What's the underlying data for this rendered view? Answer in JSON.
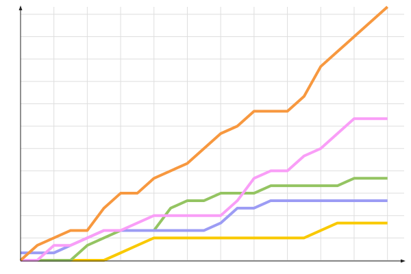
{
  "chart_data": {
    "type": "line",
    "x": [
      0,
      1,
      2,
      3,
      4,
      5,
      6,
      7,
      8,
      9,
      10,
      11,
      12,
      13,
      14,
      15,
      16,
      17,
      18,
      19,
      20,
      21,
      22
    ],
    "xlim": [
      0,
      23
    ],
    "ylim": [
      0,
      34
    ],
    "xticks": [
      0,
      2,
      4,
      6,
      8,
      10,
      12,
      14,
      16,
      18,
      20,
      22
    ],
    "yticks": [
      0,
      3,
      6,
      9,
      12,
      15,
      18,
      21,
      24,
      27,
      30,
      33
    ],
    "grid": true,
    "series": [
      {
        "color": "#f9c900",
        "values": [
          0,
          0,
          0,
          0,
          0,
          0,
          1,
          2,
          3,
          3,
          3,
          3,
          3,
          3,
          3,
          3,
          3,
          3,
          4,
          5,
          5,
          5,
          5
        ]
      },
      {
        "color": "#94c462",
        "values": [
          0,
          0,
          0,
          0,
          2,
          3,
          4,
          4,
          4,
          7,
          8,
          8,
          9,
          9,
          9,
          10,
          10,
          10,
          10,
          10,
          11,
          11,
          11
        ]
      },
      {
        "color": "#9c9cf4",
        "values": [
          1,
          1,
          1,
          2,
          3,
          4,
          4,
          4,
          4,
          4,
          4,
          4,
          5,
          7,
          7,
          8,
          8,
          8,
          8,
          8,
          8,
          8,
          8
        ]
      },
      {
        "color": "#f99ef7",
        "values": [
          0,
          0,
          2,
          2,
          3,
          4,
          4,
          5,
          6,
          6,
          6,
          6,
          6,
          8,
          11,
          12,
          12,
          14,
          15,
          17,
          19,
          19,
          19
        ]
      },
      {
        "color": "#f7983f",
        "values": [
          0,
          2,
          3,
          4,
          4,
          7,
          9,
          9,
          11,
          12,
          13,
          15,
          17,
          18,
          20,
          20,
          20,
          22,
          26,
          28,
          30,
          32,
          34
        ]
      }
    ]
  }
}
